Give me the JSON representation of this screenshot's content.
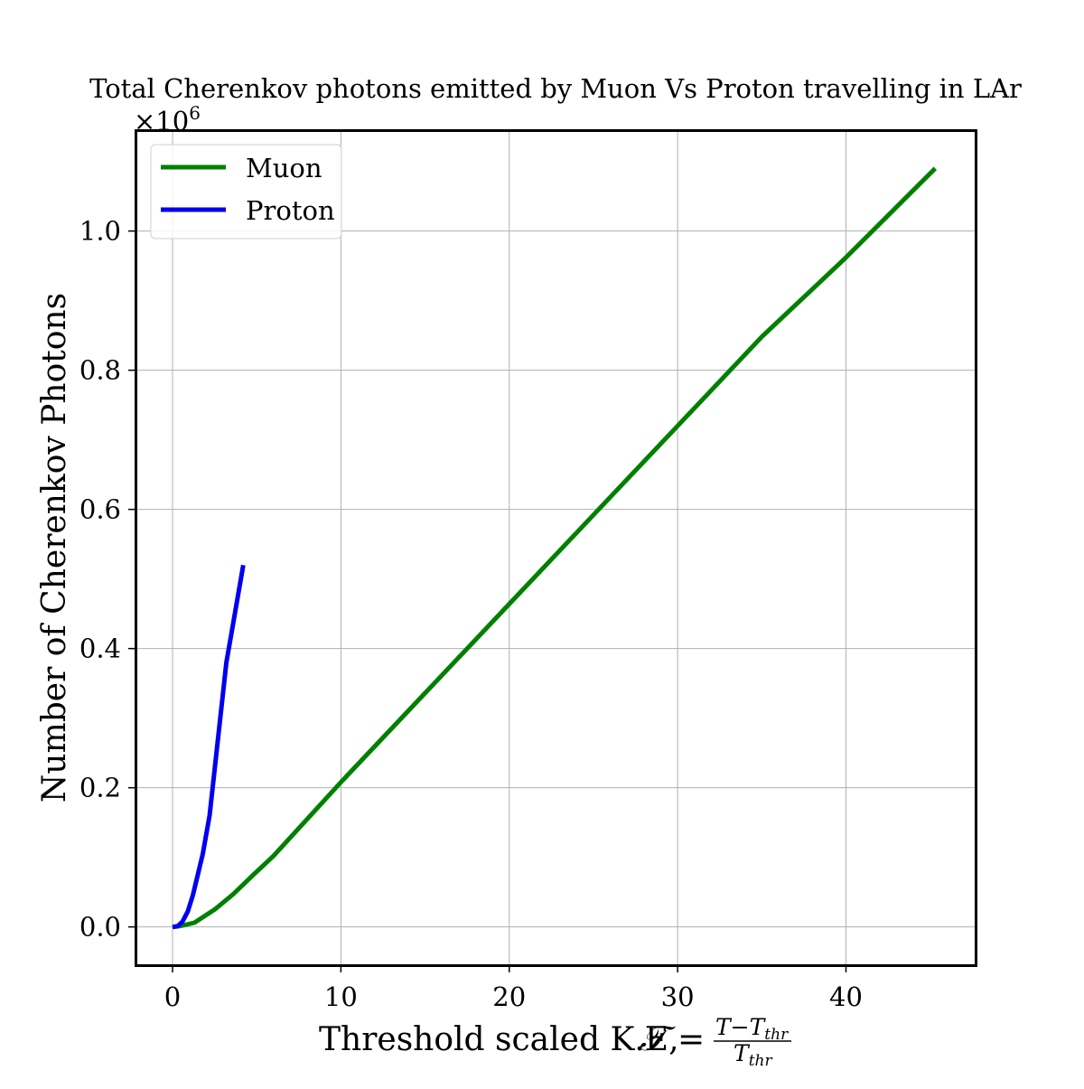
{
  "chart_data": {
    "type": "line",
    "title": "Total Cherenkov photons emitted by Muon Vs Proton travelling in LAr",
    "xlabel": "Threshold scaled K.E,",
    "xlabel_math": {
      "symbol": "𝒯",
      "equals": "=",
      "numerator": "T−T",
      "numerator_sub": "thr",
      "denominator": "T",
      "denominator_sub": "thr"
    },
    "ylabel": "Number of Cherenkov Photons",
    "y_offset_text": {
      "base": "×10",
      "exponent": "6"
    },
    "xlim": [
      -2.2,
      47.7
    ],
    "ylim": [
      -0.055,
      1.145
    ],
    "x_ticks": [
      0,
      10,
      20,
      30,
      40
    ],
    "x_tick_labels": [
      "0",
      "10",
      "20",
      "30",
      "40"
    ],
    "y_ticks": [
      0.0,
      0.2,
      0.4,
      0.6,
      0.8,
      1.0
    ],
    "y_tick_labels": [
      "0.0",
      "0.2",
      "0.4",
      "0.6",
      "0.8",
      "1.0"
    ],
    "grid": true,
    "legend_position": "top-left",
    "series": [
      {
        "name": "Muon",
        "color": "#008000",
        "x": [
          0,
          0.5,
          1.3,
          2.5,
          3.6,
          4.8,
          6.0,
          8.0,
          10.0,
          15.0,
          20.0,
          25.0,
          30.0,
          35.0,
          40.0,
          45.3
        ],
        "y": [
          0.0,
          0.0015,
          0.006,
          0.025,
          0.047,
          0.075,
          0.102,
          0.155,
          0.208,
          0.336,
          0.464,
          0.592,
          0.72,
          0.848,
          0.962,
          1.09
        ]
      },
      {
        "name": "Proton",
        "color": "#0000ee",
        "x": [
          0,
          0.3,
          0.6,
          0.9,
          1.2,
          1.5,
          1.8,
          2.2,
          2.7,
          3.2,
          3.7,
          4.2
        ],
        "y": [
          0.0,
          0.001,
          0.008,
          0.022,
          0.045,
          0.075,
          0.105,
          0.16,
          0.27,
          0.38,
          0.45,
          0.52
        ]
      }
    ]
  }
}
